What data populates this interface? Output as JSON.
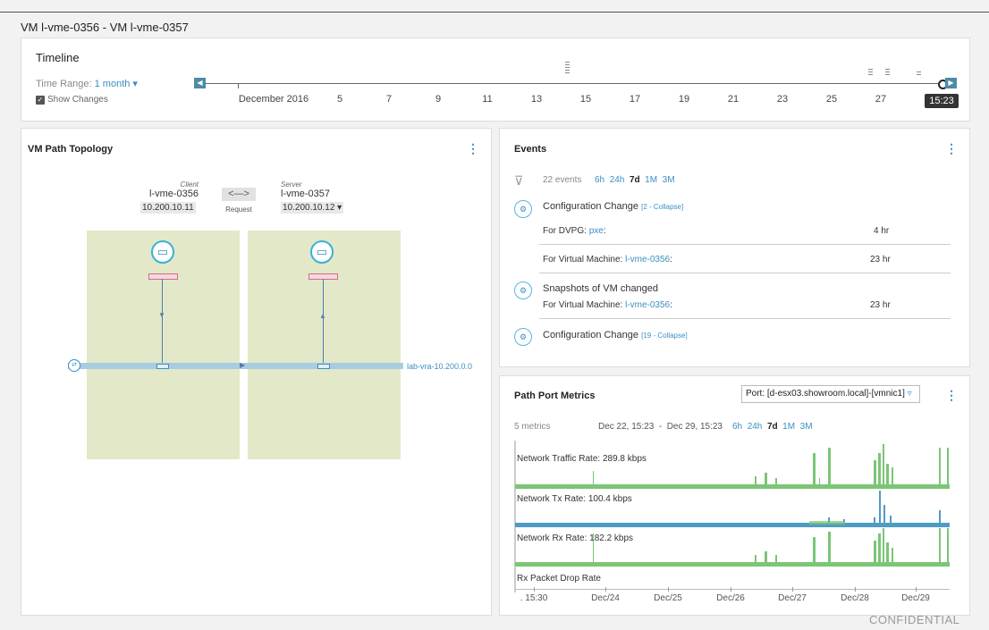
{
  "page": {
    "title": "VM l-vme-0356 - VM l-vme-0357"
  },
  "timeline": {
    "title": "Timeline",
    "time_range_label": "Time Range:",
    "time_range_value": "1 month",
    "show_changes_label": "Show Changes",
    "show_changes_checked": true,
    "month_label": "December 2016",
    "ticks": [
      "5",
      "7",
      "9",
      "11",
      "13",
      "15",
      "17",
      "19",
      "21",
      "23",
      "25",
      "27"
    ],
    "current_time": "15:23"
  },
  "topology": {
    "title": "VM Path Topology",
    "client_role": "Client",
    "client_name": "l-vme-0356",
    "client_ip": "10.200.10.11",
    "request_label": "Request",
    "server_role": "Server",
    "server_name": "l-vme-0357",
    "server_ip": "10.200.10.12",
    "network_label": "lab-vra-10.200.0.0"
  },
  "events": {
    "title": "Events",
    "count": "22 events",
    "ranges": [
      "6h",
      "24h",
      "7d",
      "1M",
      "3M"
    ],
    "active_range": "7d",
    "items": [
      {
        "title": "Configuration Change",
        "collapse": "[2 - Collapse]"
      },
      {
        "title": "Snapshots of VM changed",
        "collapse": ""
      },
      {
        "title": "Configuration Change",
        "collapse": "[19 - Collapse]"
      }
    ],
    "rows": [
      {
        "prefix": "For DVPG:",
        "link": "pxe",
        "suffix": ":",
        "time": "4 hr"
      },
      {
        "prefix": "For Virtual Machine:",
        "link": "l-vme-0356",
        "suffix": ":",
        "time": "23 hr"
      },
      {
        "prefix": "For Virtual Machine:",
        "link": "l-vme-0356",
        "suffix": ":",
        "time": "23 hr"
      }
    ]
  },
  "metrics": {
    "title": "Path Port Metrics",
    "port_select": "Port: [d-esx03.showroom.local]-[vmnic1]",
    "count": "5 metrics",
    "date_range": "Dec 22, 15:23  -  Dec 29, 15:23",
    "ranges": [
      "6h",
      "24h",
      "7d",
      "1M",
      "3M"
    ],
    "active_range": "7d",
    "series": [
      {
        "label": "Network Traffic Rate: 289.8 kbps",
        "color": "#7cc576"
      },
      {
        "label": "Network Tx Rate: 100.4 kbps",
        "color": "#4e9cc4"
      },
      {
        "label": "Network Rx Rate: 182.2 kbps",
        "color": "#7cc576"
      },
      {
        "label": "Rx Packet Drop Rate",
        "color": "#7cc576"
      }
    ],
    "x_labels": [
      ". 15:30",
      "Dec/24",
      "Dec/25",
      "Dec/26",
      "Dec/27",
      "Dec/28",
      "Dec/29"
    ]
  },
  "watermark": "CONFIDENTIAL",
  "colors": {
    "accent": "#3a8fc4",
    "zone": "#e2e8c8",
    "traffic": "#7cc576",
    "tx": "#4e9cc4"
  }
}
